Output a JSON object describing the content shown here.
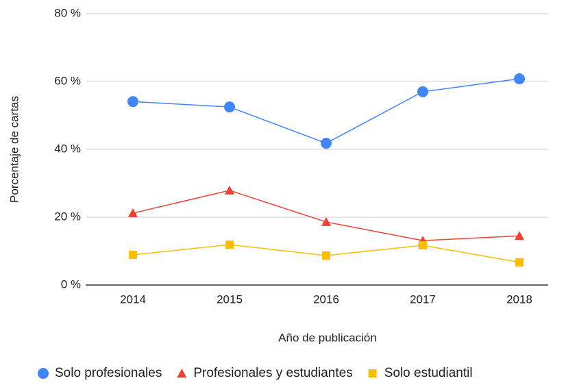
{
  "chart_data": {
    "type": "line",
    "x_label": "Año de publicación",
    "y_label": "Porcentaje de cartas",
    "categories": [
      "2014",
      "2015",
      "2016",
      "2017",
      "2018"
    ],
    "series": [
      {
        "name": "Solo profesionales",
        "color": "#4285f4",
        "marker": "circle",
        "values": [
          54.1,
          52.5,
          41.8,
          57.0,
          60.8
        ]
      },
      {
        "name": "Profesionales y estudiantes",
        "color": "#ea4335",
        "marker": "triangle",
        "values": [
          21.2,
          27.9,
          18.6,
          13.1,
          14.5
        ]
      },
      {
        "name": "Solo estudiantil",
        "color": "#fbbc04",
        "marker": "square",
        "values": [
          8.9,
          11.9,
          8.7,
          11.7,
          6.7
        ]
      }
    ],
    "ylim": [
      0,
      80
    ],
    "yticks": [
      {
        "value": 0,
        "label": "0 %"
      },
      {
        "value": 20,
        "label": "20 %"
      },
      {
        "value": 40,
        "label": "40 %"
      },
      {
        "value": 60,
        "label": "60 %"
      },
      {
        "value": 80,
        "label": "80 %"
      }
    ],
    "grid": true,
    "legend": "bottom"
  }
}
